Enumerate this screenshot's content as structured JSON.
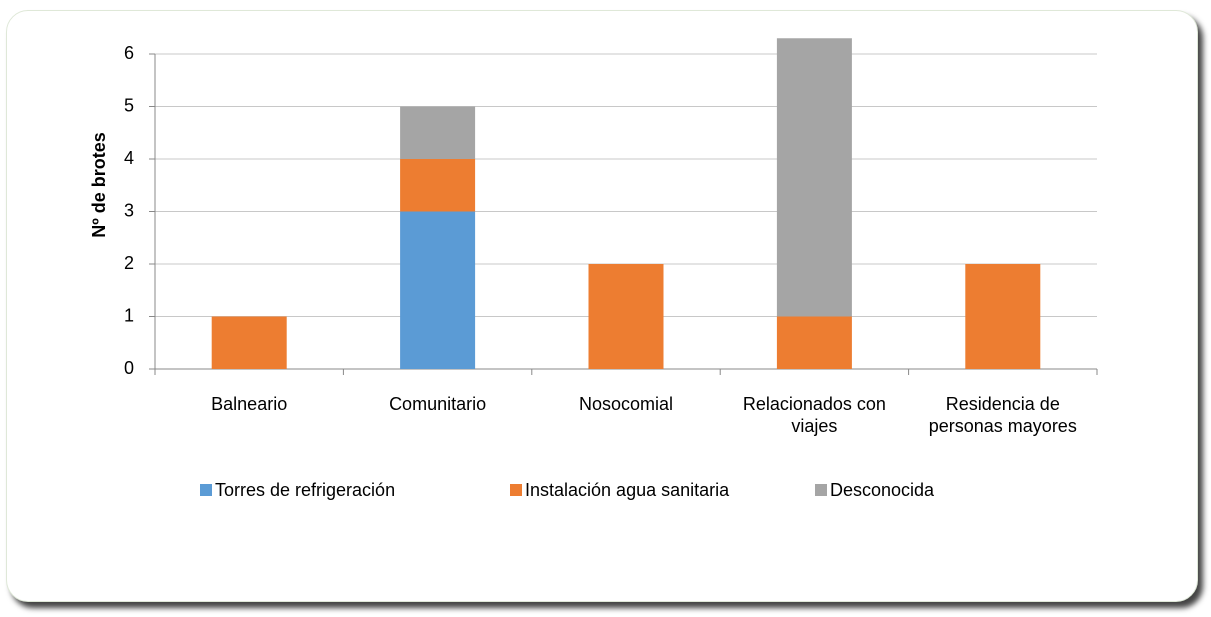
{
  "chart_data": {
    "type": "stacked_bar",
    "ylabel": "Nº de brotes",
    "categories": [
      "Balneario",
      "Comunitario",
      "Nosocomial",
      "Relacionados con viajes",
      "Residencia de personas mayores"
    ],
    "series": [
      {
        "name": "Torres de refrigeración",
        "color": "#5b9bd5",
        "values": [
          0,
          3,
          0,
          0,
          0
        ]
      },
      {
        "name": "Instalación agua sanitaria",
        "color": "#ed7d31",
        "values": [
          1,
          1,
          2,
          1,
          2
        ]
      },
      {
        "name": "Desconocida",
        "color": "#a5a5a5",
        "values": [
          0,
          1,
          0,
          5.3,
          0
        ]
      }
    ],
    "ylim": [
      0,
      6.3
    ],
    "yticks": [
      0,
      1,
      2,
      3,
      4,
      5,
      6
    ],
    "grid": true,
    "legend": "bottom"
  }
}
